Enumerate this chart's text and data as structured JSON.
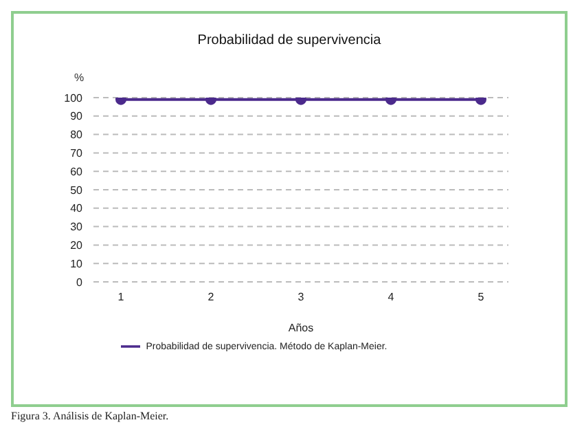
{
  "chart_data": {
    "type": "line",
    "title": "Probabilidad de supervivencia",
    "xlabel": "Años",
    "ylabel": "%",
    "categories": [
      "1",
      "2",
      "3",
      "4",
      "5"
    ],
    "series": [
      {
        "name": "Probabilidad de supervivencia. Método de Kaplan-Meier.",
        "color": "#4b2a8c",
        "values": [
          99,
          99,
          99,
          99,
          99
        ]
      }
    ],
    "ylim": [
      0,
      100
    ],
    "yticks": [
      0,
      10,
      20,
      30,
      40,
      50,
      60,
      70,
      80,
      90,
      100
    ],
    "grid": "y",
    "legend": "bottom",
    "marker": "circle",
    "line_style": "solid",
    "annotations": [
      "Figura 3. Análisis de Kaplan-Meier."
    ]
  }
}
